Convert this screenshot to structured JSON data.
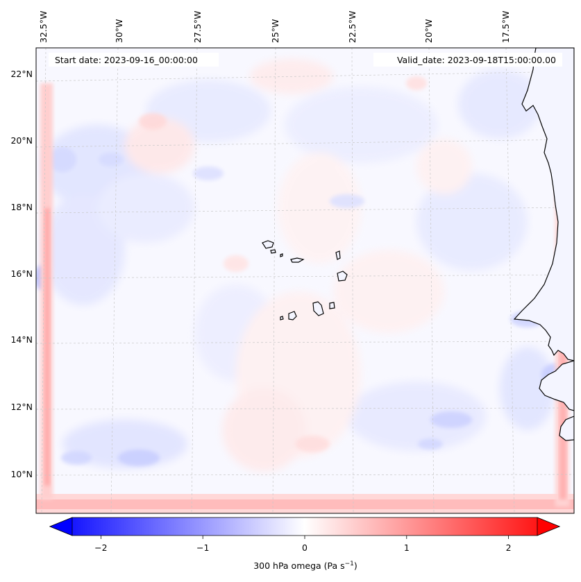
{
  "header": {
    "start_date": "Start date: 2023-09-16_00:00:00",
    "valid_date": "Valid_date: 2023-09-18T15:00:00.00"
  },
  "longitude_labels": [
    "32.5°W",
    "30°W",
    "27.5°W",
    "25°W",
    "22.5°W",
    "20°W",
    "17.5°W"
  ],
  "latitude_labels": [
    "22°N",
    "20°N",
    "18°N",
    "16°N",
    "14°N",
    "12°N",
    "10°N"
  ],
  "colorbar": {
    "ticks": [
      "−2",
      "−1",
      "0",
      "1",
      "2"
    ],
    "tick_values": [
      -2,
      -1,
      0,
      1,
      2
    ],
    "range": [
      -2.5,
      2.5
    ],
    "label_prefix": "300 hPa omega (Pa s",
    "label_exponent": "−1",
    "label_suffix": ")",
    "extend": "both",
    "colormap": "bwr",
    "low_color": "#0000ff",
    "mid_color": "#ffffff",
    "high_color": "#ff0000"
  },
  "chart_data": {
    "type": "heatmap",
    "variable": "300 hPa omega",
    "units": "Pa s^-1",
    "extent": {
      "lon": [
        -33.0,
        -16.0
      ],
      "lat": [
        8.8,
        22.8
      ]
    },
    "gridlines": true,
    "coastlines": true,
    "colors": {
      "coastline": "#000000",
      "gridline": "#c8c8c8",
      "land": "#f4f5ff"
    }
  }
}
